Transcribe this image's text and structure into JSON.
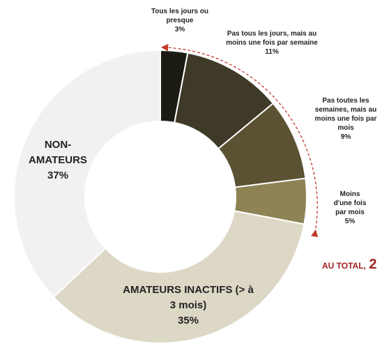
{
  "chart_data": {
    "type": "pie",
    "categories": [
      "Tous les jours ou presque",
      "Pas tous les jours, mais au moins une fois par semaine",
      "Pas toutes les semaines, mais au moins une fois par mois",
      "Moins d'une fois par mois",
      "AMATEURS INACTIFS (> à 3 mois)",
      "NON-AMATEURS"
    ],
    "values": [
      3,
      11,
      9,
      5,
      35,
      37
    ],
    "value_labels": [
      "3%",
      "11%",
      "9%",
      "5%",
      "35%",
      "37%"
    ],
    "colors": [
      "#1c1b14",
      "#3f3a28",
      "#5a5232",
      "#8d8354",
      "#ddd8c6",
      "#f1f1f1"
    ],
    "donut": true,
    "title": "",
    "annotation": "AU TOTAL, 2"
  },
  "labels": {
    "s0": {
      "line1": "Tous les jours ou",
      "line2": "presque",
      "value": "3%"
    },
    "s1": {
      "line1": "Pas tous les jours, mais au",
      "line2": "moins une fois par semaine",
      "value": "11%"
    },
    "s2": {
      "line1": "Pas toutes les",
      "line2": "semaines, mais au",
      "line3": "moins une fois par",
      "line4": "mois",
      "value": "9%"
    },
    "s3": {
      "line1": "Moins",
      "line2": "d'une fois",
      "line3": "par mois",
      "value": "5%"
    },
    "s4": {
      "line1": "AMATEURS INACTIFS (> à",
      "line2": "3 mois)",
      "value": "35%"
    },
    "s5": {
      "line1": "NON-",
      "line2": "AMATEURS",
      "value": "37%"
    }
  },
  "total": {
    "prefix": "AU TOTAL,",
    "number": "2"
  }
}
